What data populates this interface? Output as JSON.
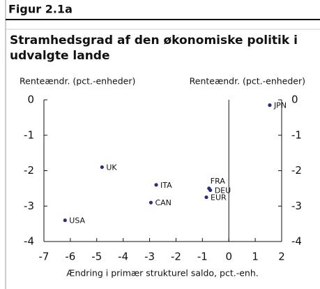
{
  "header": {
    "figure": "Figur 2.1a"
  },
  "chart_data": {
    "type": "scatter",
    "title_lines": [
      "Stramhedsgrad af den økonomiske politik i",
      "udvalgte lande"
    ],
    "y_label": "Renteændr. (pct.-enheder)",
    "y2_label": "Renteændr. (pct.-enheder)",
    "x_label": "Ændring i primær strukturel saldo, pct.-enh.",
    "labels": [
      "JPN",
      "UK",
      "ITA",
      "FRA",
      "DEU",
      "EUR",
      "CAN",
      "USA"
    ],
    "x": [
      1.55,
      -4.8,
      -2.75,
      -0.75,
      -0.7,
      -0.85,
      -2.95,
      -6.2
    ],
    "values": [
      -0.15,
      -1.9,
      -2.4,
      -2.5,
      -2.55,
      -2.75,
      -2.9,
      -3.4
    ],
    "color": "#2b2d7a",
    "xlim": [
      -7,
      2
    ],
    "xticks": [
      -7,
      -6,
      -5,
      -4,
      -3,
      -2,
      -1,
      0,
      1,
      2
    ],
    "ylim": [
      -4,
      0
    ],
    "yticks": [
      0,
      -1,
      -2,
      -3,
      -4
    ],
    "y2lim": [
      -4,
      0
    ],
    "y2ticks": [
      0,
      -1,
      -2,
      -3,
      -4
    ]
  }
}
